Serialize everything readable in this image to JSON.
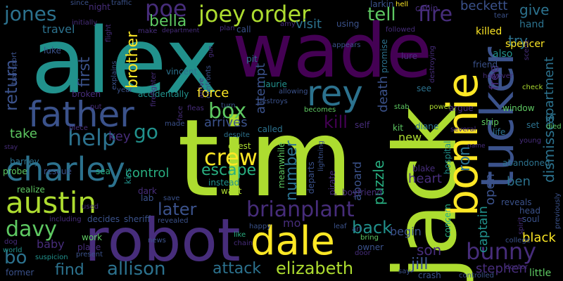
{
  "palette": {
    "purple": "#440154",
    "indigo": "#472d7b",
    "blue": "#3b528b",
    "steel": "#2c728e",
    "teal": "#21918c",
    "sea": "#28ae80",
    "green": "#5ec962",
    "lime": "#addc30",
    "yellow": "#fde725"
  },
  "words": [
    {
      "text": "alex"
    },
    {
      "text": "wade"
    },
    {
      "text": "tim"
    },
    {
      "text": "jack"
    },
    {
      "text": "robot"
    },
    {
      "text": "tucker"
    },
    {
      "text": "bonnie"
    },
    {
      "text": "father"
    },
    {
      "text": "charley"
    },
    {
      "text": "dale"
    },
    {
      "text": "austin"
    },
    {
      "text": "rey"
    },
    {
      "text": "joey"
    },
    {
      "text": "order"
    },
    {
      "text": "poe"
    },
    {
      "text": "jones"
    },
    {
      "text": "brianplant"
    },
    {
      "text": "bunny"
    },
    {
      "text": "elizabeth"
    },
    {
      "text": "allison"
    },
    {
      "text": "crew"
    },
    {
      "text": "box"
    },
    {
      "text": "fire"
    },
    {
      "text": "tell"
    },
    {
      "text": "davy"
    },
    {
      "text": "help"
    },
    {
      "text": "return"
    },
    {
      "text": "go"
    },
    {
      "text": "brother"
    },
    {
      "text": "first"
    },
    {
      "text": "bella"
    },
    {
      "text": "escape"
    },
    {
      "text": "later"
    },
    {
      "text": "kill"
    },
    {
      "text": "back"
    },
    {
      "text": "attack"
    },
    {
      "text": "find"
    },
    {
      "text": "bo"
    },
    {
      "text": "puzzle"
    },
    {
      "text": "number"
    },
    {
      "text": "ron"
    },
    {
      "text": "captain"
    },
    {
      "text": "black"
    },
    {
      "text": "stephen"
    },
    {
      "text": "heart"
    },
    {
      "text": "jill"
    },
    {
      "text": "son"
    },
    {
      "text": "ben"
    },
    {
      "text": "open"
    },
    {
      "text": "dismisses"
    },
    {
      "text": "apartment"
    },
    {
      "text": "free"
    },
    {
      "text": "try"
    },
    {
      "text": "give"
    },
    {
      "text": "beckett"
    },
    {
      "text": "death"
    },
    {
      "text": "force"
    },
    {
      "text": "arrives"
    },
    {
      "text": "control"
    },
    {
      "text": "take"
    },
    {
      "text": "key"
    },
    {
      "text": "visit"
    },
    {
      "text": "travel"
    },
    {
      "text": "attempt"
    },
    {
      "text": "mo"
    },
    {
      "text": "baby"
    },
    {
      "text": "begin"
    },
    {
      "text": "new"
    },
    {
      "text": "aboard"
    },
    {
      "text": "little"
    },
    {
      "text": "killed"
    },
    {
      "text": "hand"
    },
    {
      "text": "spencer"
    },
    {
      "text": "also"
    },
    {
      "text": "friend"
    },
    {
      "text": "window"
    },
    {
      "text": "argue"
    },
    {
      "text": "ship"
    },
    {
      "text": "life"
    },
    {
      "text": "set"
    },
    {
      "text": "abandoned"
    },
    {
      "text": "reveals"
    },
    {
      "text": "head"
    },
    {
      "text": "soul"
    },
    {
      "text": "blake"
    },
    {
      "text": "kit"
    },
    {
      "text": "diane"
    },
    {
      "text": "hospital"
    },
    {
      "text": "concern"
    },
    {
      "text": "boyfriend"
    },
    {
      "text": "instead"
    },
    {
      "text": "want"
    },
    {
      "text": "chest"
    },
    {
      "text": "despite"
    },
    {
      "text": "called"
    },
    {
      "text": "self"
    },
    {
      "text": "lab"
    },
    {
      "text": "dark"
    },
    {
      "text": "kiss"
    },
    {
      "text": "sea"
    },
    {
      "text": "rescue"
    },
    {
      "text": "probe"
    },
    {
      "text": "barney"
    },
    {
      "text": "realize"
    },
    {
      "text": "decides"
    },
    {
      "text": "sheriff"
    },
    {
      "text": "work"
    },
    {
      "text": "plane"
    },
    {
      "text": "present"
    },
    {
      "text": "news"
    },
    {
      "text": "revealed"
    },
    {
      "text": "happy"
    },
    {
      "text": "like"
    },
    {
      "text": "chain"
    },
    {
      "text": "bring"
    },
    {
      "text": "owner"
    },
    {
      "text": "crash"
    },
    {
      "text": "say"
    },
    {
      "text": "former"
    },
    {
      "text": "suspicion"
    },
    {
      "text": "world"
    },
    {
      "text": "dog"
    },
    {
      "text": "including"
    },
    {
      "text": "used"
    },
    {
      "text": "leaf"
    },
    {
      "text": "art"
    },
    {
      "text": "door"
    },
    {
      "text": "pirate"
    },
    {
      "text": "departs"
    },
    {
      "text": "meanwhile"
    },
    {
      "text": "lightning"
    },
    {
      "text": "controlled"
    },
    {
      "text": "doctor"
    },
    {
      "text": "college"
    },
    {
      "text": "previously"
    },
    {
      "text": "spirit"
    },
    {
      "text": "young"
    },
    {
      "text": "died"
    },
    {
      "text": "check"
    },
    {
      "text": "however"
    },
    {
      "text": "several"
    },
    {
      "text": "power"
    },
    {
      "text": "stab"
    },
    {
      "text": "see"
    },
    {
      "text": "becomes"
    },
    {
      "text": "allowing"
    },
    {
      "text": "laurie"
    },
    {
      "text": "destroys"
    },
    {
      "text": "turn"
    },
    {
      "text": "fleas"
    },
    {
      "text": "face"
    },
    {
      "text": "confronts"
    },
    {
      "text": "arrive"
    },
    {
      "text": "accidentally"
    },
    {
      "text": "year"
    },
    {
      "text": "vincent"
    },
    {
      "text": "firefighter"
    },
    {
      "text": "explains"
    },
    {
      "text": "luke"
    },
    {
      "text": "transport"
    },
    {
      "text": "broken"
    },
    {
      "text": "put"
    },
    {
      "text": "piece"
    },
    {
      "text": "made"
    },
    {
      "text": "save"
    },
    {
      "text": "pit"
    },
    {
      "text": "amy"
    },
    {
      "text": "using"
    },
    {
      "text": "call"
    },
    {
      "text": "plan"
    },
    {
      "text": "appears"
    },
    {
      "text": "promise"
    },
    {
      "text": "destroying"
    },
    {
      "text": "lure"
    },
    {
      "text": "larkin"
    },
    {
      "text": "hell"
    },
    {
      "text": "cabin"
    },
    {
      "text": "followed"
    },
    {
      "text": "tear"
    },
    {
      "text": "scene"
    },
    {
      "text": "traffic"
    },
    {
      "text": "since"
    },
    {
      "text": "night"
    },
    {
      "text": "initially"
    },
    {
      "text": "flight"
    },
    {
      "text": "department"
    },
    {
      "text": "make"
    },
    {
      "text": "name"
    },
    {
      "text": "stay"
    },
    {
      "text": "gun"
    }
  ]
}
